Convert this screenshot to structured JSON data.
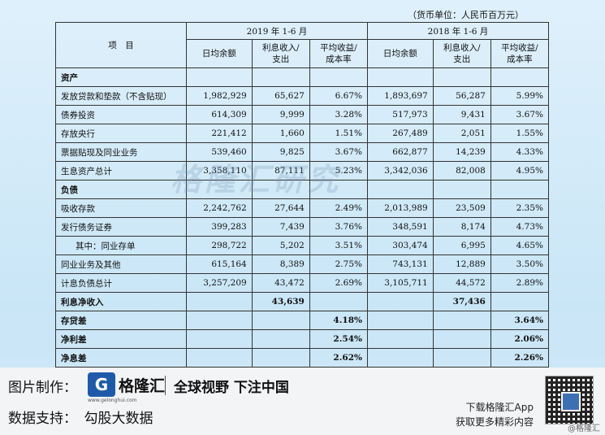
{
  "unit_note": "（货币单位：人民币百万元）",
  "header": {
    "item": "项　目",
    "period_2019": "2019 年 1-6 月",
    "period_2018": "2018 年 1-6 月",
    "col_avg": "日均余额",
    "col_int_l1": "利息收入/",
    "col_int_l2": "支出",
    "col_rate_l1": "平均收益/",
    "col_rate_l2": "成本率"
  },
  "rows": [
    {
      "label": "资产",
      "section": true,
      "a19": "",
      "i19": "",
      "r19": "",
      "a18": "",
      "i18": "",
      "r18": ""
    },
    {
      "label": "发放贷款和垫款（不含贴现）",
      "a19": "1,982,929",
      "i19": "65,627",
      "r19": "6.67%",
      "a18": "1,893,697",
      "i18": "56,287",
      "r18": "5.99%"
    },
    {
      "label": "债券投资",
      "a19": "614,309",
      "i19": "9,999",
      "r19": "3.28%",
      "a18": "517,973",
      "i18": "9,431",
      "r18": "3.67%"
    },
    {
      "label": "存放央行",
      "a19": "221,412",
      "i19": "1,660",
      "r19": "1.51%",
      "a18": "267,489",
      "i18": "2,051",
      "r18": "1.55%"
    },
    {
      "label": "票据贴现及同业业务",
      "a19": "539,460",
      "i19": "9,825",
      "r19": "3.67%",
      "a18": "662,877",
      "i18": "14,239",
      "r18": "4.33%"
    },
    {
      "label": "生息资产总计",
      "a19": "3,358,110",
      "i19": "87,111",
      "r19": "5.23%",
      "a18": "3,342,036",
      "i18": "82,008",
      "r18": "4.95%"
    },
    {
      "label": "负债",
      "section": true,
      "a19": "",
      "i19": "",
      "r19": "",
      "a18": "",
      "i18": "",
      "r18": ""
    },
    {
      "label": "吸收存款",
      "a19": "2,242,762",
      "i19": "27,644",
      "r19": "2.49%",
      "a18": "2,013,989",
      "i18": "23,509",
      "r18": "2.35%"
    },
    {
      "label": "发行债务证券",
      "a19": "399,283",
      "i19": "7,439",
      "r19": "3.76%",
      "a18": "348,591",
      "i18": "8,174",
      "r18": "4.73%"
    },
    {
      "label": "其中：同业存单",
      "indent": true,
      "a19": "298,722",
      "i19": "5,202",
      "r19": "3.51%",
      "a18": "303,474",
      "i18": "6,995",
      "r18": "4.65%"
    },
    {
      "label": "同业业务及其他",
      "a19": "615,164",
      "i19": "8,389",
      "r19": "2.75%",
      "a18": "743,131",
      "i18": "12,889",
      "r18": "3.50%"
    },
    {
      "label": "计息负债总计",
      "a19": "3,257,209",
      "i19": "43,472",
      "r19": "2.69%",
      "a18": "3,105,711",
      "i18": "44,572",
      "r18": "2.89%"
    },
    {
      "label": "利息净收入",
      "bold": true,
      "a19": "",
      "i19": "43,639",
      "r19": "",
      "a18": "",
      "i18": "37,436",
      "r18": ""
    },
    {
      "label": "存贷差",
      "bold": true,
      "a19": "",
      "i19": "",
      "r19": "4.18%",
      "a18": "",
      "i18": "",
      "r18": "3.64%"
    },
    {
      "label": "净利差",
      "bold": true,
      "a19": "",
      "i19": "",
      "r19": "2.54%",
      "a18": "",
      "i18": "",
      "r18": "2.06%"
    },
    {
      "label": "净息差",
      "bold": true,
      "a19": "",
      "i19": "",
      "r19": "2.62%",
      "a18": "",
      "i18": "",
      "r18": "2.26%"
    }
  ],
  "watermark": "格隆汇研究",
  "footer": {
    "made_by": "图片制作：",
    "logo_char": "G",
    "brand": "格隆汇",
    "domain": "www.gelonghui.com",
    "slogan": "全球视野 下注中国",
    "data_support": "数据支持：　勾股大数据",
    "download": "下载格隆汇App",
    "more": "获取更多精彩内容",
    "corner_watermark": "@格隆汇"
  }
}
